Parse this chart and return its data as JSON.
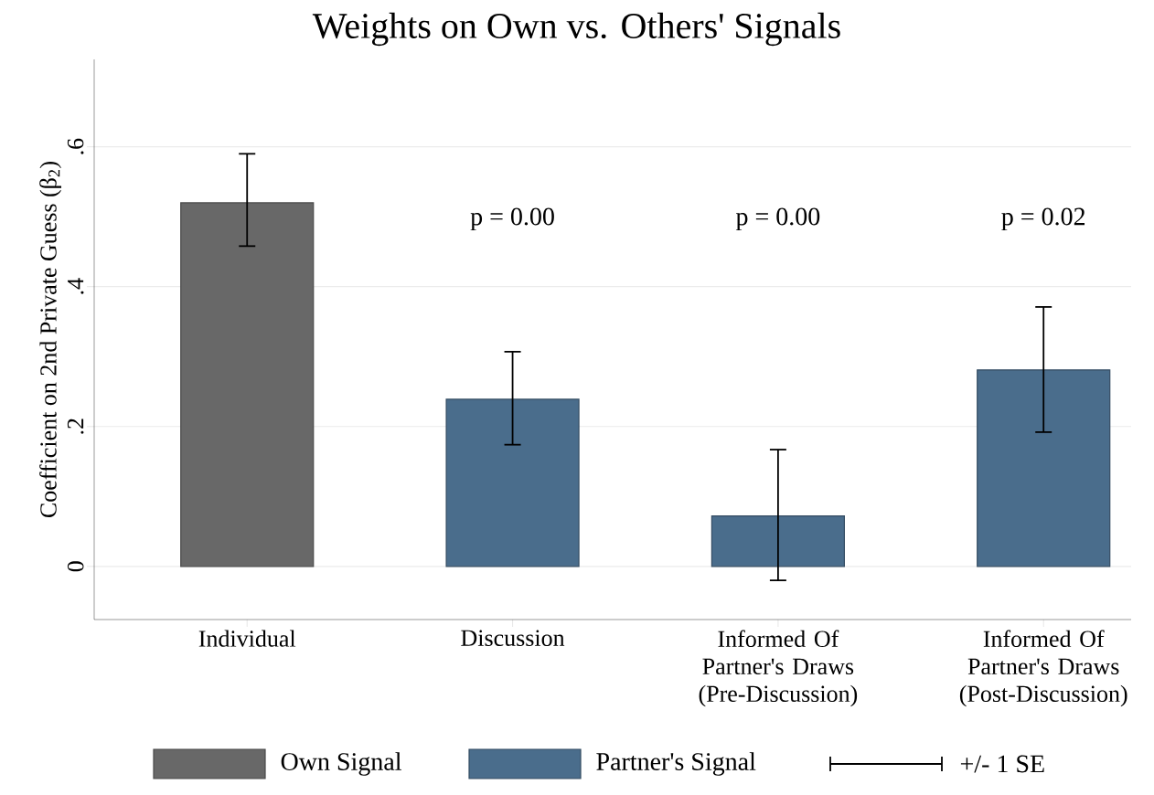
{
  "chart_data": {
    "type": "bar",
    "title": "Weights on Own vs. Others' Signals",
    "ylabel": "Coefficient on 2nd Private Guess (β$_{2}$)",
    "categories": [
      "Individual",
      "Discussion",
      "Informed Of Partner's Draws (Pre-Discussion)",
      "Informed Of Partner's Draws (Post-Discussion)"
    ],
    "series": [
      {
        "name": "Own Signal",
        "color": "#686868",
        "values": [
          0.52,
          null,
          null,
          null
        ],
        "errors": [
          [
            0.458,
            0.59
          ],
          null,
          null,
          null
        ]
      },
      {
        "name": "Partner's Signal",
        "color": "#4a6d8c",
        "values": [
          null,
          0.239,
          0.072,
          0.281
        ],
        "errors": [
          null,
          [
            0.174,
            0.307
          ],
          [
            -0.02,
            0.167
          ],
          [
            0.192,
            0.371
          ]
        ]
      }
    ],
    "ylim": [
      -0.076,
      0.725
    ],
    "yticks": [
      {
        "value": 0,
        "label": "0"
      },
      {
        "value": 0.2,
        "label": ".2"
      },
      {
        "value": 0.4,
        "label": ".4"
      },
      {
        "value": 0.6,
        "label": ".6"
      }
    ],
    "grid": "y",
    "legend": "bottom",
    "annotations": [
      "p = 0.00",
      "p = 0.00",
      "p = 0.02",
      "+/- 1 SE"
    ]
  }
}
